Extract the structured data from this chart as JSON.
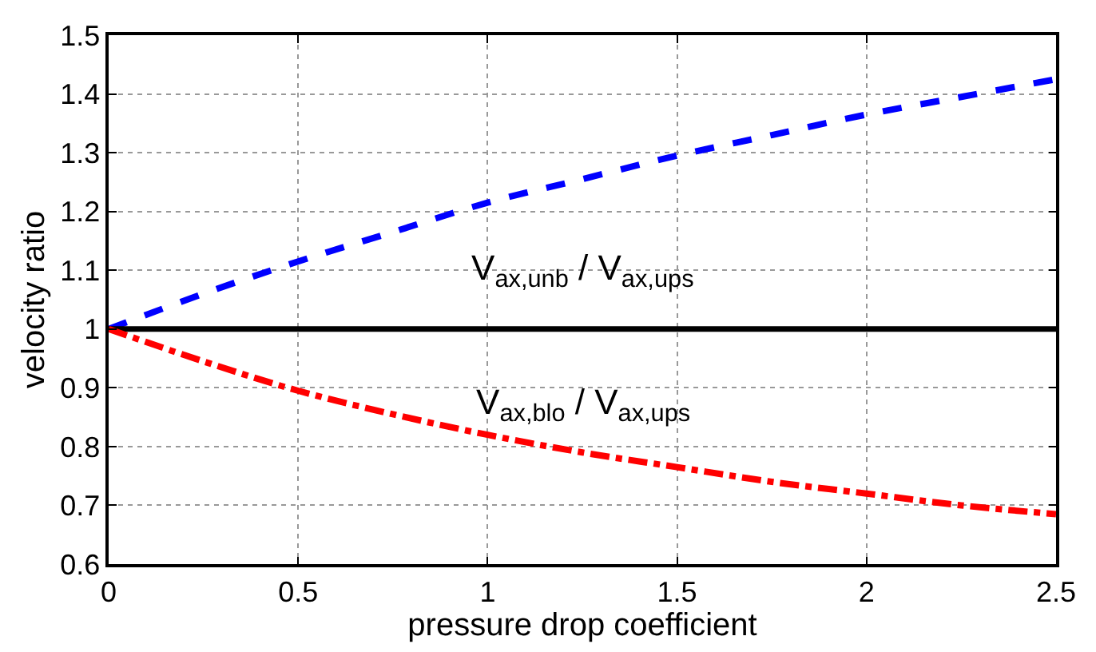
{
  "chart_data": {
    "type": "line",
    "xlabel": "pressure drop coefficient",
    "ylabel": "velocity ratio",
    "x": [
      0,
      0.25,
      0.5,
      0.75,
      1,
      1.25,
      1.5,
      1.75,
      2,
      2.25,
      2.5
    ],
    "series": [
      {
        "name": "V$_{ax,unb}$ / V$_{ax,ups}$",
        "color": "#0000ff",
        "line_style": "dashed",
        "values": [
          1.0,
          1.06,
          1.115,
          1.165,
          1.215,
          1.255,
          1.295,
          1.33,
          1.365,
          1.395,
          1.425
        ]
      },
      {
        "color": "#000000",
        "line_style": "solid",
        "values": [
          1,
          1,
          1,
          1,
          1,
          1,
          1,
          1,
          1,
          1,
          1
        ]
      },
      {
        "name": "V$_{ax,blo}$ / V$_{ax,ups}$",
        "color": "#ff0000",
        "line_style": "dashdot",
        "values": [
          1.0,
          0.945,
          0.895,
          0.855,
          0.82,
          0.79,
          0.765,
          0.74,
          0.72,
          0.7,
          0.685
        ]
      }
    ],
    "xlim": [
      0,
      2.5
    ],
    "xticks": [
      0,
      0.5,
      1,
      1.5,
      2,
      2.5
    ],
    "ylim": [
      0.6,
      1.5
    ],
    "yticks": [
      0.6,
      0.7,
      0.8,
      0.9,
      1,
      1.1,
      1.2,
      1.3,
      1.4,
      1.5
    ],
    "grid": true,
    "legend": false
  }
}
